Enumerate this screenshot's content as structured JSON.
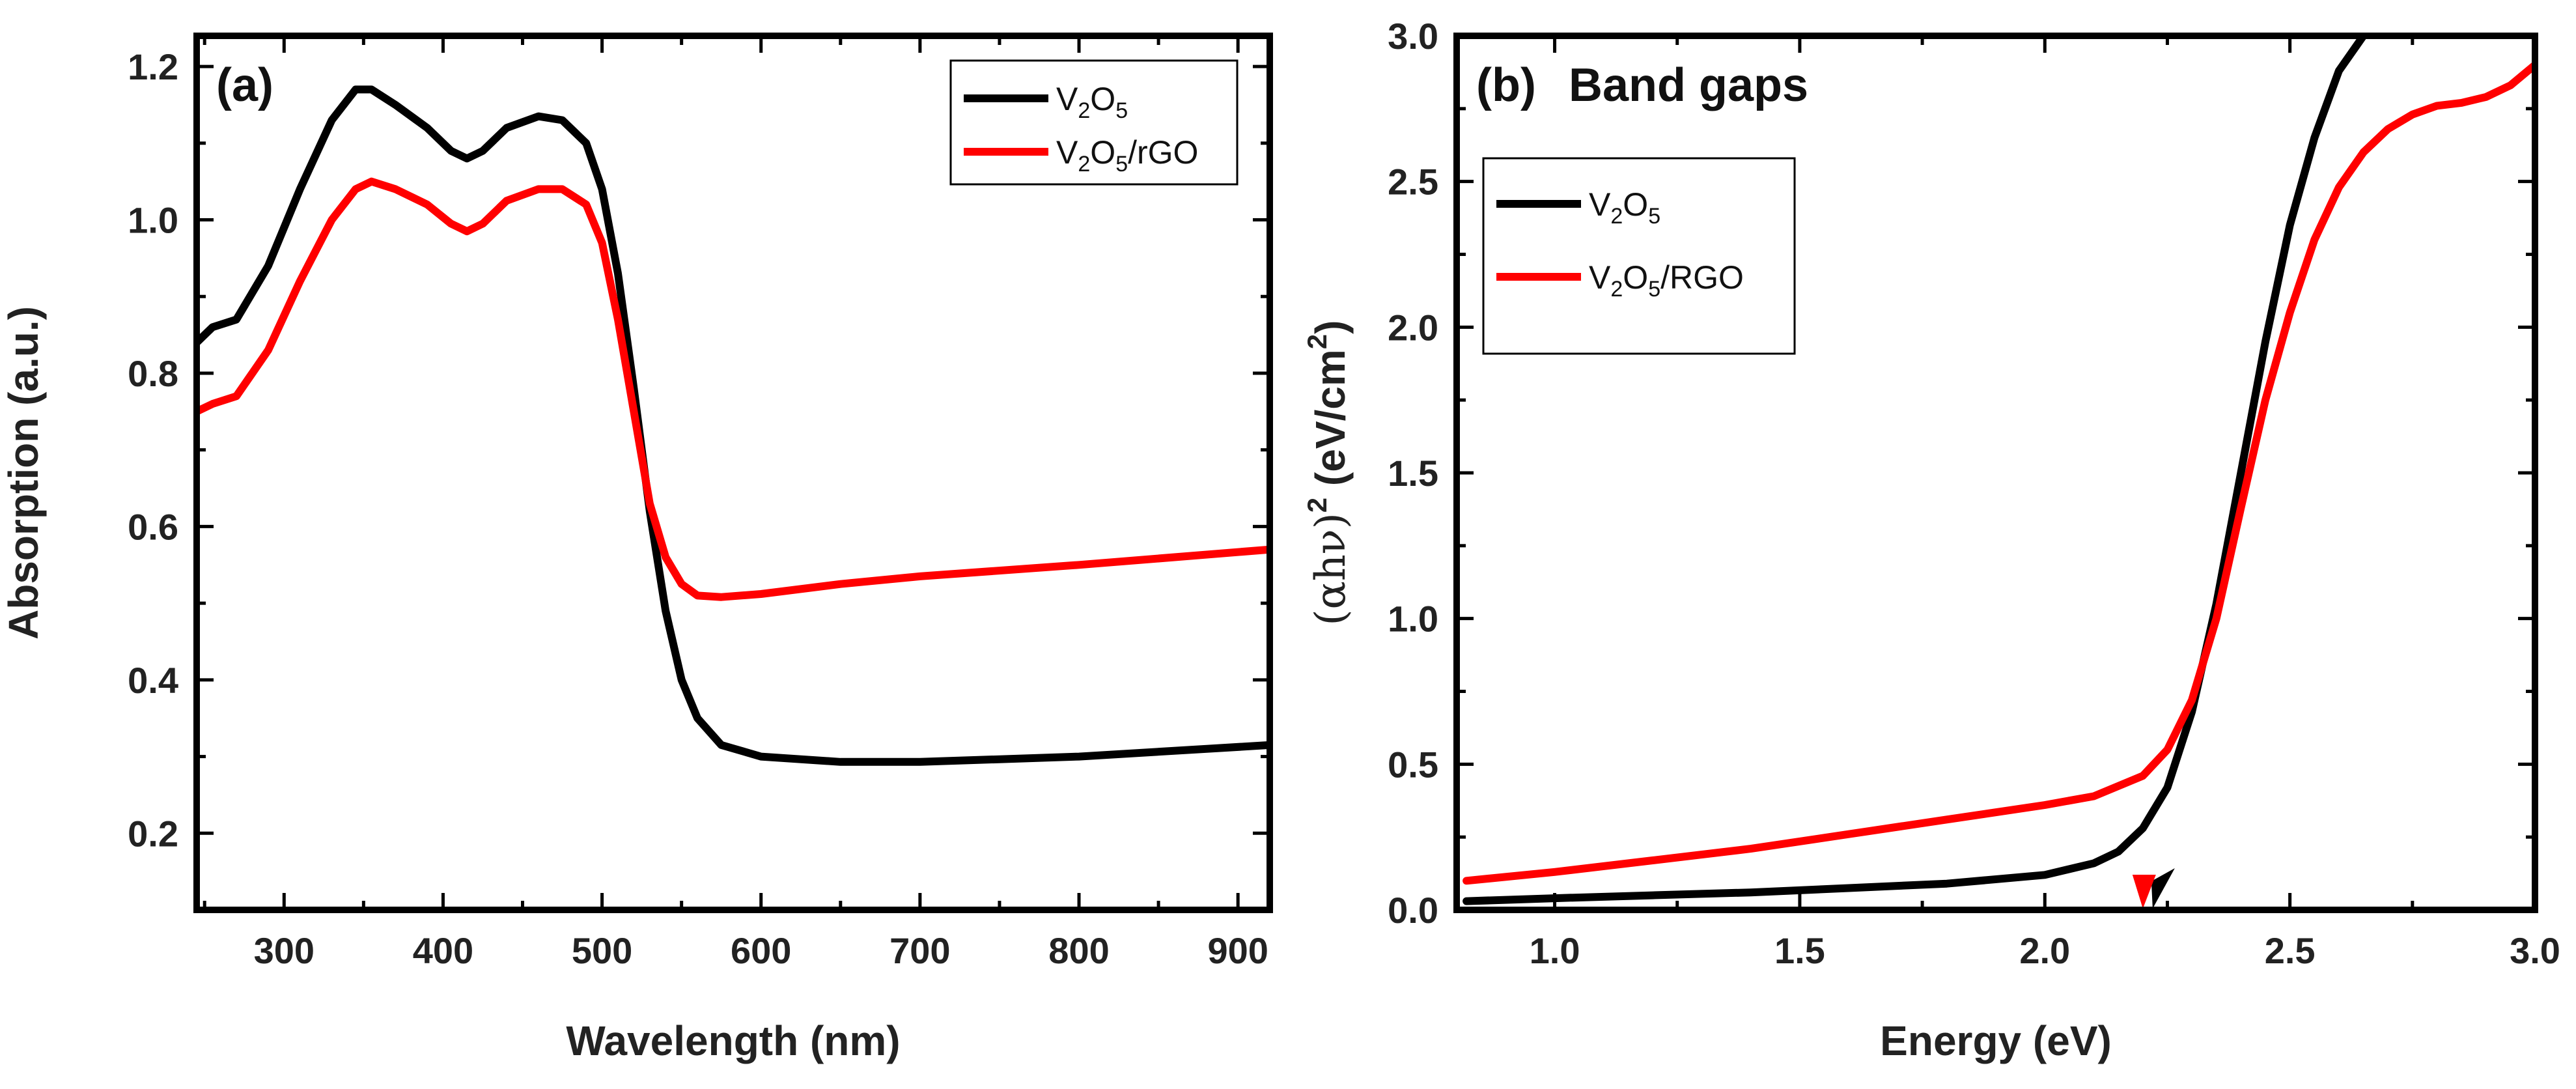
{
  "chart_data": [
    {
      "type": "line",
      "panel_label": "(a)",
      "title": "",
      "xlabel": "Wavelength (nm)",
      "ylabel": "Absorption (a.u.)",
      "xlim": [
        245,
        920
      ],
      "ylim": [
        0.1,
        1.24
      ],
      "xticks": [
        300,
        400,
        500,
        600,
        700,
        800,
        900
      ],
      "xtick_labels": [
        "300",
        "400",
        "500",
        "600",
        "700",
        "800",
        "900"
      ],
      "yticks": [
        0.2,
        0.4,
        0.6,
        0.8,
        1.0,
        1.2
      ],
      "ytick_labels": [
        "0.2",
        "0.4",
        "0.6",
        "0.8",
        "1.0",
        "1.2"
      ],
      "legend_position": "top-right",
      "grid": false,
      "series": [
        {
          "name": "V2O5",
          "label_parts": [
            "V",
            "2",
            "O",
            "5",
            ""
          ],
          "color": "#000000",
          "x": [
            245,
            255,
            270,
            290,
            310,
            330,
            345,
            355,
            370,
            390,
            405,
            415,
            425,
            440,
            460,
            475,
            490,
            500,
            510,
            520,
            530,
            540,
            550,
            560,
            575,
            600,
            650,
            700,
            800,
            920
          ],
          "y": [
            0.84,
            0.86,
            0.87,
            0.94,
            1.04,
            1.13,
            1.17,
            1.17,
            1.15,
            1.12,
            1.09,
            1.08,
            1.09,
            1.12,
            1.135,
            1.13,
            1.1,
            1.04,
            0.93,
            0.78,
            0.62,
            0.49,
            0.4,
            0.35,
            0.315,
            0.3,
            0.293,
            0.293,
            0.3,
            0.315
          ]
        },
        {
          "name": "V2O5/rGO",
          "label_parts": [
            "V",
            "2",
            "O",
            "5",
            "/rGO"
          ],
          "color": "#ff0000",
          "x": [
            245,
            255,
            270,
            290,
            310,
            330,
            345,
            355,
            370,
            390,
            405,
            415,
            425,
            440,
            460,
            475,
            490,
            500,
            510,
            520,
            530,
            540,
            550,
            560,
            575,
            600,
            650,
            700,
            800,
            920
          ],
          "y": [
            0.75,
            0.76,
            0.77,
            0.83,
            0.92,
            1.0,
            1.04,
            1.05,
            1.04,
            1.02,
            0.995,
            0.985,
            0.995,
            1.025,
            1.04,
            1.04,
            1.02,
            0.97,
            0.87,
            0.75,
            0.63,
            0.56,
            0.525,
            0.51,
            0.508,
            0.512,
            0.525,
            0.535,
            0.55,
            0.57
          ]
        }
      ]
    },
    {
      "type": "line",
      "panel_label": "(b)",
      "title": "Band gaps",
      "xlabel": "Energy (eV)",
      "ylabel": "(αhν)² (eV/cm)²",
      "ylabel_parts": [
        "(αhν)",
        "2",
        " (eV/cm",
        "2",
        ")"
      ],
      "xlim": [
        0.8,
        3.0
      ],
      "ylim": [
        0.0,
        3.0
      ],
      "xticks": [
        1.0,
        1.5,
        2.0,
        2.5,
        3.0
      ],
      "xtick_labels": [
        "1.0",
        "1.5",
        "2.0",
        "2.5",
        "3.0"
      ],
      "yticks": [
        0.0,
        0.5,
        1.0,
        1.5,
        2.0,
        2.5,
        3.0
      ],
      "ytick_labels": [
        "0.0",
        "0.5",
        "1.0",
        "1.5",
        "2.0",
        "2.5",
        "3.0"
      ],
      "legend_position": "top-left",
      "grid": false,
      "band_gap_estimates_eV": [
        {
          "series": "V2O5",
          "value": 2.22,
          "color": "#000000"
        },
        {
          "series": "V2O5/RGO",
          "value": 2.2,
          "color": "#ff0000"
        }
      ],
      "series": [
        {
          "name": "V2O5",
          "label_parts": [
            "V",
            "2",
            "O",
            "5",
            ""
          ],
          "color": "#000000",
          "x": [
            0.82,
            1.0,
            1.2,
            1.4,
            1.6,
            1.8,
            2.0,
            2.1,
            2.15,
            2.2,
            2.25,
            2.3,
            2.35,
            2.4,
            2.45,
            2.5,
            2.55,
            2.6,
            2.65
          ],
          "y": [
            0.03,
            0.04,
            0.05,
            0.06,
            0.075,
            0.09,
            0.12,
            0.16,
            0.2,
            0.28,
            0.42,
            0.68,
            1.05,
            1.5,
            1.95,
            2.35,
            2.65,
            2.88,
            3.0
          ]
        },
        {
          "name": "V2O5/RGO",
          "label_parts": [
            "V",
            "2",
            "O",
            "5",
            "/RGO"
          ],
          "color": "#ff0000",
          "x": [
            0.82,
            1.0,
            1.2,
            1.4,
            1.6,
            1.8,
            2.0,
            2.1,
            2.2,
            2.25,
            2.3,
            2.35,
            2.4,
            2.45,
            2.5,
            2.55,
            2.6,
            2.65,
            2.7,
            2.75,
            2.8,
            2.85,
            2.9,
            2.95,
            3.0
          ],
          "y": [
            0.1,
            0.13,
            0.17,
            0.21,
            0.26,
            0.31,
            0.36,
            0.39,
            0.46,
            0.55,
            0.72,
            1.0,
            1.38,
            1.75,
            2.05,
            2.3,
            2.48,
            2.6,
            2.68,
            2.73,
            2.76,
            2.77,
            2.79,
            2.83,
            2.9
          ]
        }
      ]
    }
  ]
}
